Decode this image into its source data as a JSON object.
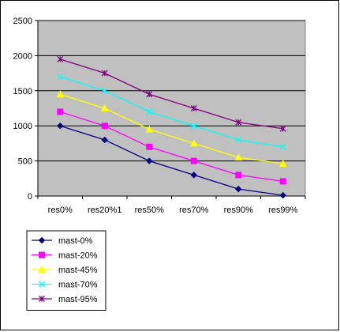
{
  "chart_data": {
    "type": "line",
    "categories": [
      "res0%",
      "res20%1",
      "res50%",
      "res70%",
      "res90%",
      "res99%"
    ],
    "ylim": [
      0,
      2500
    ],
    "yticks": [
      0,
      500,
      1000,
      1500,
      2000,
      2500
    ],
    "grid": true,
    "plot_background": "#c0c0c0",
    "legend_position": "bottom-left",
    "series": [
      {
        "name": "mast-0%",
        "color": "#000080",
        "marker": "diamond",
        "values": [
          1000,
          800,
          500,
          300,
          100,
          10
        ]
      },
      {
        "name": "mast-20%",
        "color": "#ff00ff",
        "marker": "square",
        "values": [
          1200,
          1000,
          700,
          500,
          300,
          210
        ]
      },
      {
        "name": "mast-45%",
        "color": "#ffff00",
        "marker": "triangle",
        "values": [
          1450,
          1250,
          950,
          750,
          550,
          460
        ]
      },
      {
        "name": "mast-70%",
        "color": "#00ffff",
        "marker": "x",
        "values": [
          1700,
          1500,
          1200,
          1000,
          800,
          700
        ]
      },
      {
        "name": "mast-95%",
        "color": "#800080",
        "marker": "star",
        "values": [
          1950,
          1750,
          1450,
          1250,
          1050,
          960
        ]
      }
    ]
  }
}
